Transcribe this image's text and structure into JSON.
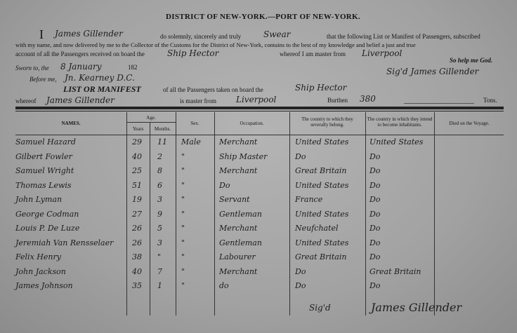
{
  "header": {
    "title": "DISTRICT OF NEW-YORK.—PORT OF NEW-YORK.",
    "oath_i": "I",
    "master_name": "James Gillender",
    "oath_text1": "do solemnly, sincerely and truly",
    "oath_verb": "Swear",
    "oath_text2": "that the following List or Manifest of Passengers, subscribed",
    "oath_line2": "with my name, and now delivered by me to the Collector of the Customs for the District of New-York, contains to the best of my knowledge and belief a just and true",
    "oath_line3": "account of all the Passengers received on board the",
    "ship": "Ship Hector",
    "whereof_master_from": "whereof I am master from",
    "port_from": "Liverpool",
    "so_help": "So help me God.",
    "sworn_label": "Sworn to, the",
    "sworn_date": "8 January",
    "sworn_year": "182",
    "before_label": "Before me,",
    "before_name": "Jn. Kearney D.C.",
    "signed": "Sig'd James Gillender",
    "list_title": "LIST OR MANIFEST",
    "list_text": "of all the Passengers taken on board the",
    "list_ship": "Ship Hector",
    "whereof_label": "whereof",
    "list_master": "James Gillender",
    "is_master_from": "is master from",
    "list_port": "Liverpool",
    "burthen_label": "Burthen",
    "burthen": "380",
    "tons_label": "Tons."
  },
  "table": {
    "columns": {
      "names": "NAMES.",
      "age": "Age.",
      "years": "Years",
      "months": "Months.",
      "sex": "Sex.",
      "occupation": "Occupation.",
      "belong": "The country to which they severally belong.",
      "inhabit": "The country in which they intend to become inhabitants.",
      "died": "Died on the Voyage."
    },
    "rows": [
      {
        "name": "Samuel Hazard",
        "years": "29",
        "months": "11",
        "sex": "Male",
        "occupation": "Merchant",
        "belong": "United States",
        "inhabit": "United States"
      },
      {
        "name": "Gilbert Fowler",
        "years": "40",
        "months": "2",
        "sex": "\"",
        "occupation": "Ship Master",
        "belong": "Do",
        "inhabit": "Do"
      },
      {
        "name": "Samuel Wright",
        "years": "25",
        "months": "8",
        "sex": "\"",
        "occupation": "Merchant",
        "belong": "Great Britain",
        "inhabit": "Do"
      },
      {
        "name": "Thomas Lewis",
        "years": "51",
        "months": "6",
        "sex": "\"",
        "occupation": "Do",
        "belong": "United States",
        "inhabit": "Do"
      },
      {
        "name": "John Lyman",
        "years": "19",
        "months": "3",
        "sex": "\"",
        "occupation": "Servant",
        "belong": "France",
        "inhabit": "Do"
      },
      {
        "name": "George Codman",
        "years": "27",
        "months": "9",
        "sex": "\"",
        "occupation": "Gentleman",
        "belong": "United States",
        "inhabit": "Do"
      },
      {
        "name": "Louis P. De Luze",
        "years": "26",
        "months": "5",
        "sex": "\"",
        "occupation": "Merchant",
        "belong": "Neufchatel",
        "inhabit": "Do"
      },
      {
        "name": "Jeremiah Van Rensselaer",
        "years": "26",
        "months": "3",
        "sex": "\"",
        "occupation": "Gentleman",
        "belong": "United States",
        "inhabit": "Do"
      },
      {
        "name": "Felix Henry",
        "years": "38",
        "months": "\"",
        "sex": "\"",
        "occupation": "Labourer",
        "belong": "Great Britain",
        "inhabit": "Do"
      },
      {
        "name": "John Jackson",
        "years": "40",
        "months": "7",
        "sex": "\"",
        "occupation": "Merchant",
        "belong": "Do",
        "inhabit": "Great Britain"
      },
      {
        "name": "James Johnson",
        "years": "35",
        "months": "1",
        "sex": "\"",
        "occupation": "do",
        "belong": "Do",
        "inhabit": "Do"
      }
    ],
    "footer_signed": "Sig'd",
    "footer_signature": "James Gillender"
  }
}
